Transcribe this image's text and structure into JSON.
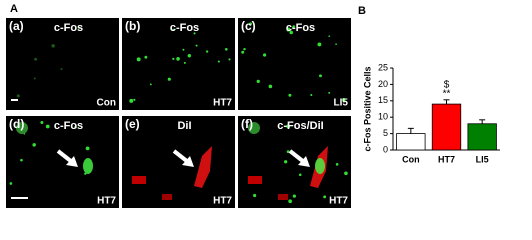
{
  "figure_label": "A",
  "panels": [
    {
      "letter": "(a)",
      "stain": "c-Fos",
      "group": "Con"
    },
    {
      "letter": "(b)",
      "stain": "c-Fos",
      "group": "HT7"
    },
    {
      "letter": "(c)",
      "stain": "c-Fos",
      "group": "LI5"
    },
    {
      "letter": "(d)",
      "stain": "c-Fos",
      "group": "HT7"
    },
    {
      "letter": "(e)",
      "stain": "DiI",
      "group": "HT7"
    },
    {
      "letter": "(f)",
      "stain": "c-Fos/DiI",
      "group": "HT7"
    }
  ],
  "chart_data": {
    "type": "bar",
    "label": "B",
    "y_label": "c-Fos Positive Cells",
    "categories": [
      "Con",
      "HT7",
      "LI5"
    ],
    "values": [
      5,
      14,
      8
    ],
    "errors": [
      1.6,
      1.3,
      1.2
    ],
    "colors": [
      "#ffffff",
      "#ff0000",
      "#008000"
    ],
    "annotations": [
      {
        "category": 1,
        "lines": [
          "$",
          "**"
        ]
      }
    ],
    "ylim": [
      0,
      25
    ],
    "yticks": [
      0,
      5,
      10,
      15,
      20,
      25
    ]
  }
}
